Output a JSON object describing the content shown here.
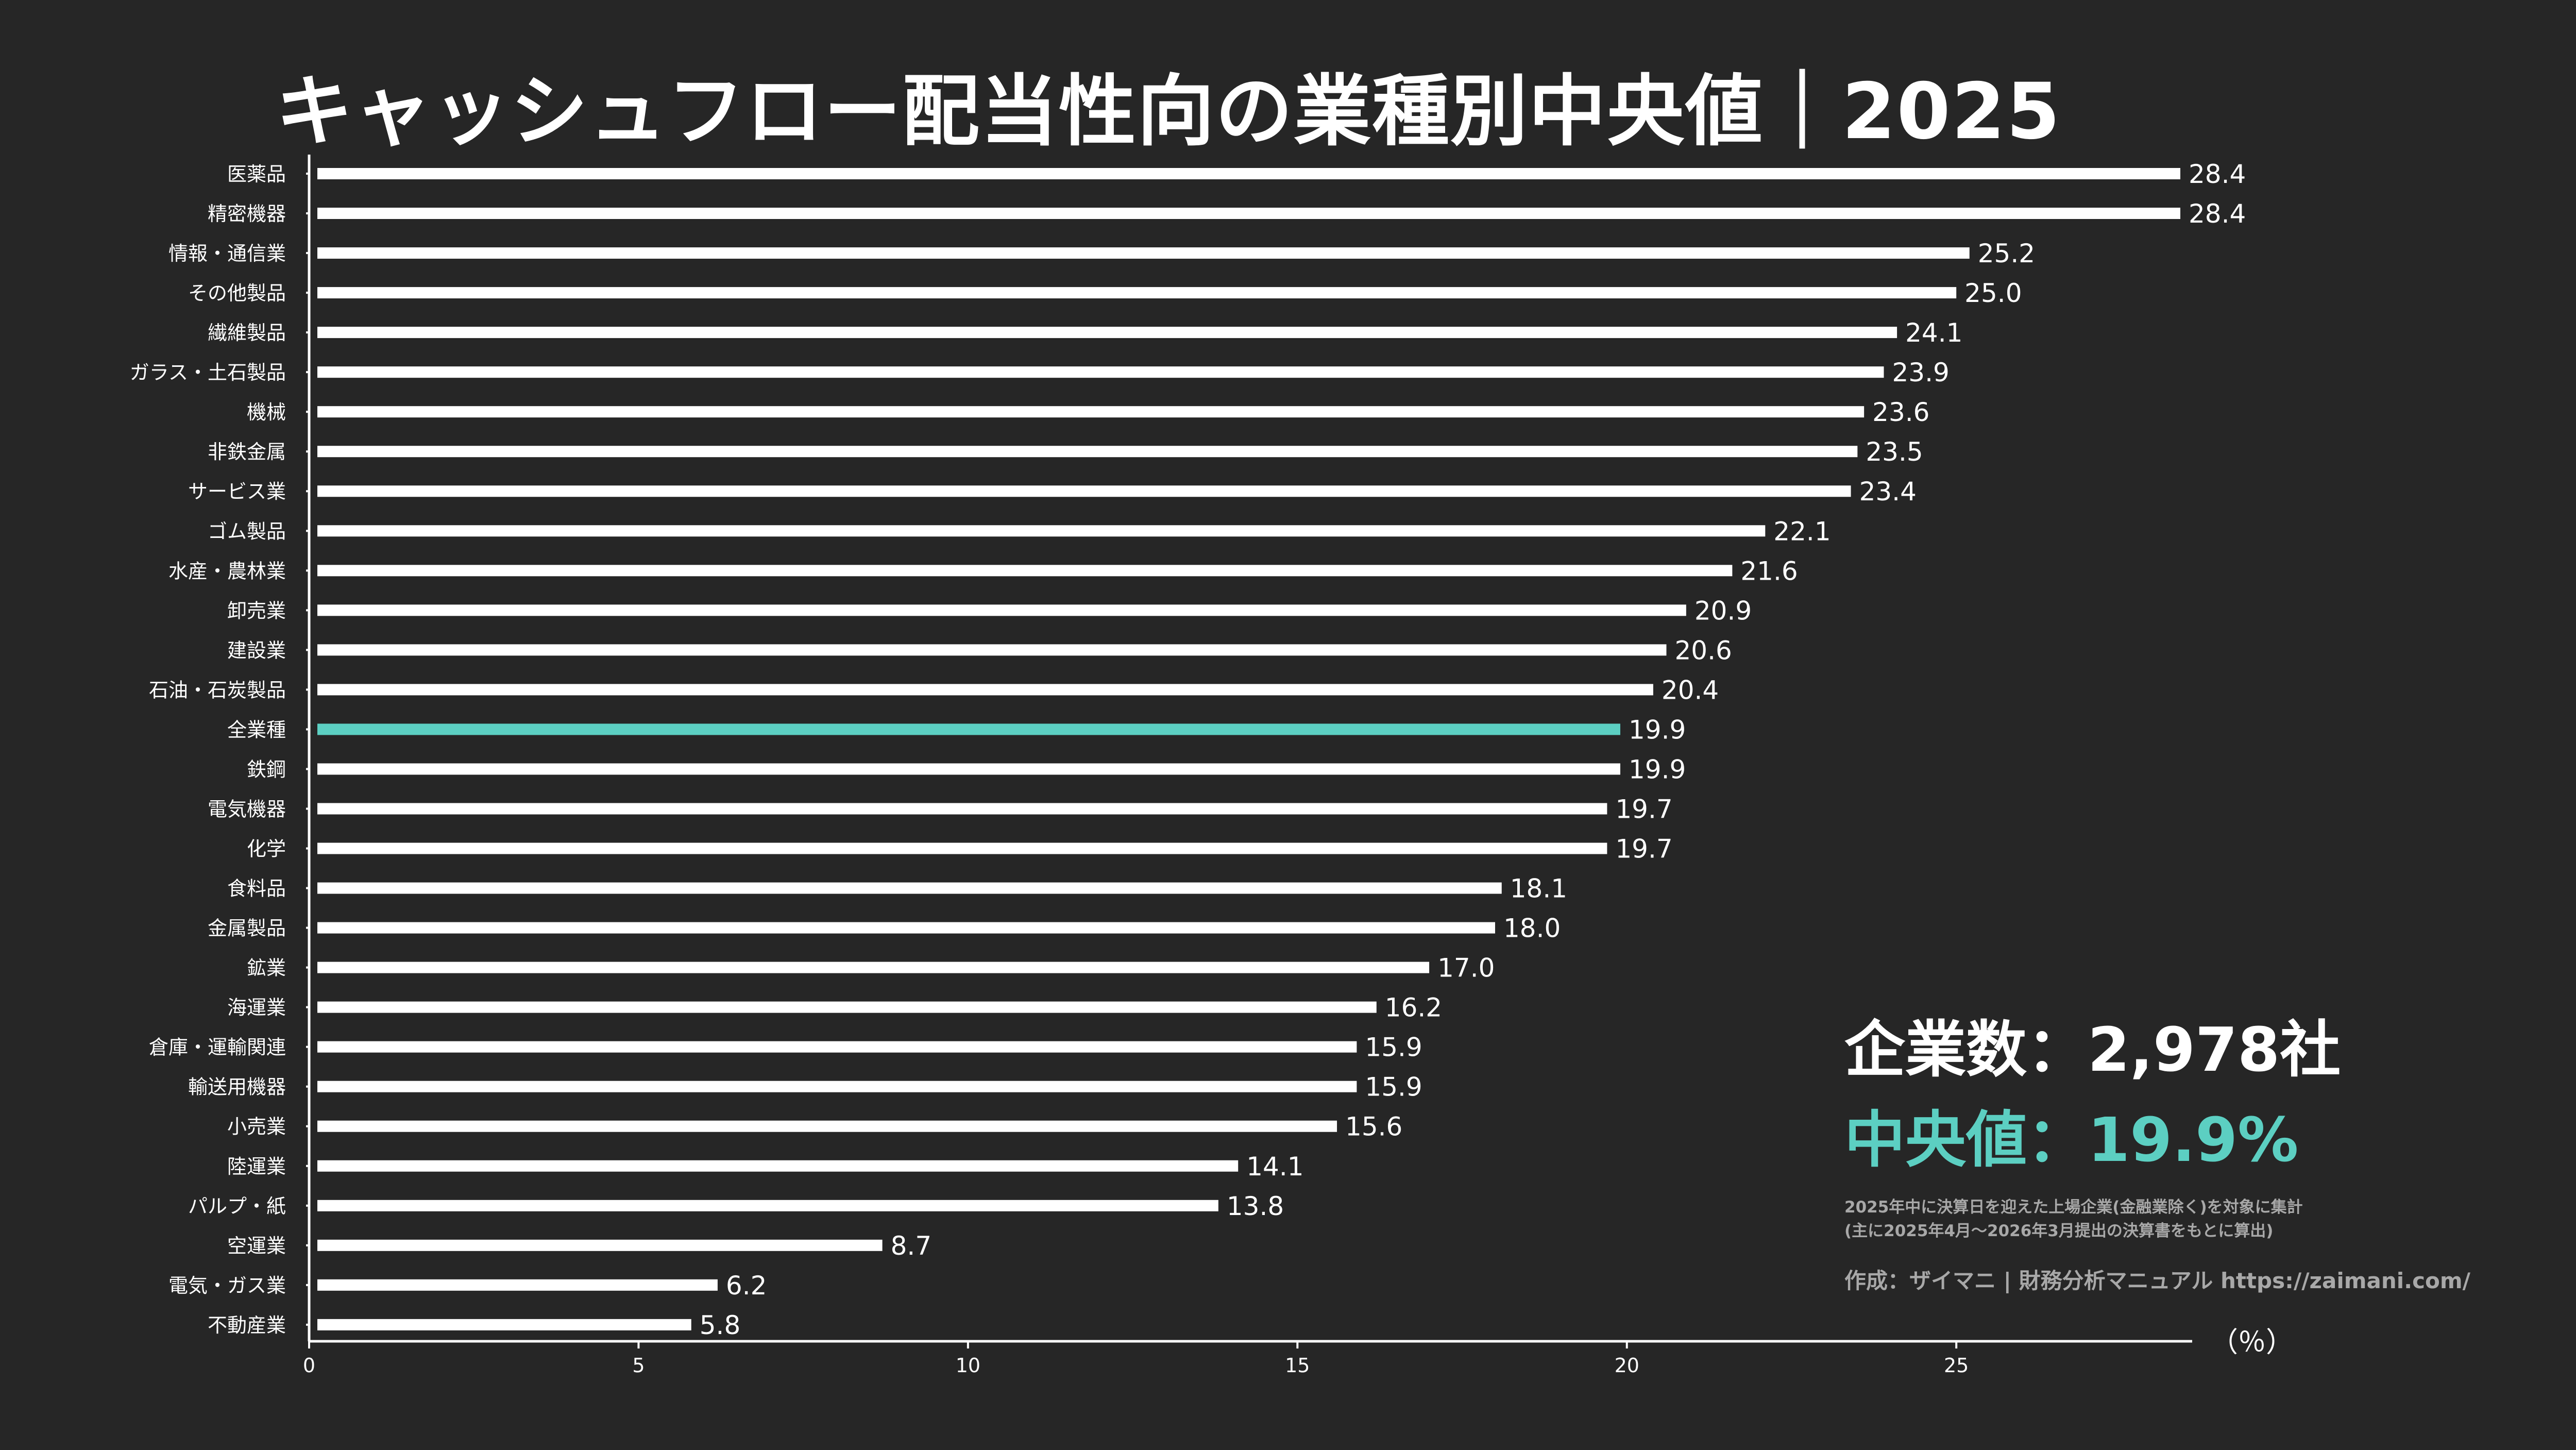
{
  "title": "キャッシュフロー配当性向の業種別中央値｜2025",
  "colors": {
    "background": "#262626",
    "bar": "#ffffff",
    "highlight": "#5ccfc2",
    "text": "#ffffff",
    "muted": "#a8a8a8"
  },
  "info": {
    "count_text": "企業数：2,978社",
    "median_text": "中央値：19.9%",
    "note_line1": "2025年中に決算日を迎えた上場企業(金融業除く)を対象に集計",
    "note_line2": "(主に2025年4月〜2026年3月提出の決算書をもとに算出)",
    "credit": "作成：ザイマニ | 財務分析マニュアル https://zaimani.com/"
  },
  "chart_data": {
    "type": "bar",
    "orientation": "horizontal",
    "title": "キャッシュフロー配当性向の業種別中央値｜2025",
    "unit_label": "（％）",
    "xlim": [
      0,
      28.4
    ],
    "xticks": [
      0,
      5,
      10,
      15,
      20,
      25
    ],
    "highlight_category": "全業種",
    "categories": [
      "医薬品",
      "精密機器",
      "情報・通信業",
      "その他製品",
      "繊維製品",
      "ガラス・土石製品",
      "機械",
      "非鉄金属",
      "サービス業",
      "ゴム製品",
      "水産・農林業",
      "卸売業",
      "建設業",
      "石油・石炭製品",
      "全業種",
      "鉄鋼",
      "電気機器",
      "化学",
      "食料品",
      "金属製品",
      "鉱業",
      "海運業",
      "倉庫・運輸関連",
      "輸送用機器",
      "小売業",
      "陸運業",
      "パルプ・紙",
      "空運業",
      "電気・ガス業",
      "不動産業"
    ],
    "values": [
      28.4,
      28.4,
      25.2,
      25.0,
      24.1,
      23.9,
      23.6,
      23.5,
      23.4,
      22.1,
      21.6,
      20.9,
      20.6,
      20.4,
      19.9,
      19.9,
      19.7,
      19.7,
      18.1,
      18.0,
      17.0,
      16.2,
      15.9,
      15.9,
      15.6,
      14.1,
      13.8,
      8.7,
      6.2,
      5.8
    ],
    "value_labels": [
      "28.4",
      "28.4",
      "25.2",
      "25.0",
      "24.1",
      "23.9",
      "23.6",
      "23.5",
      "23.4",
      "22.1",
      "21.6",
      "20.9",
      "20.6",
      "20.4",
      "19.9",
      "19.9",
      "19.7",
      "19.7",
      "18.1",
      "18.0",
      "17.0",
      "16.2",
      "15.9",
      "15.9",
      "15.6",
      "14.1",
      "13.8",
      "8.7",
      "6.2",
      "5.8"
    ]
  }
}
